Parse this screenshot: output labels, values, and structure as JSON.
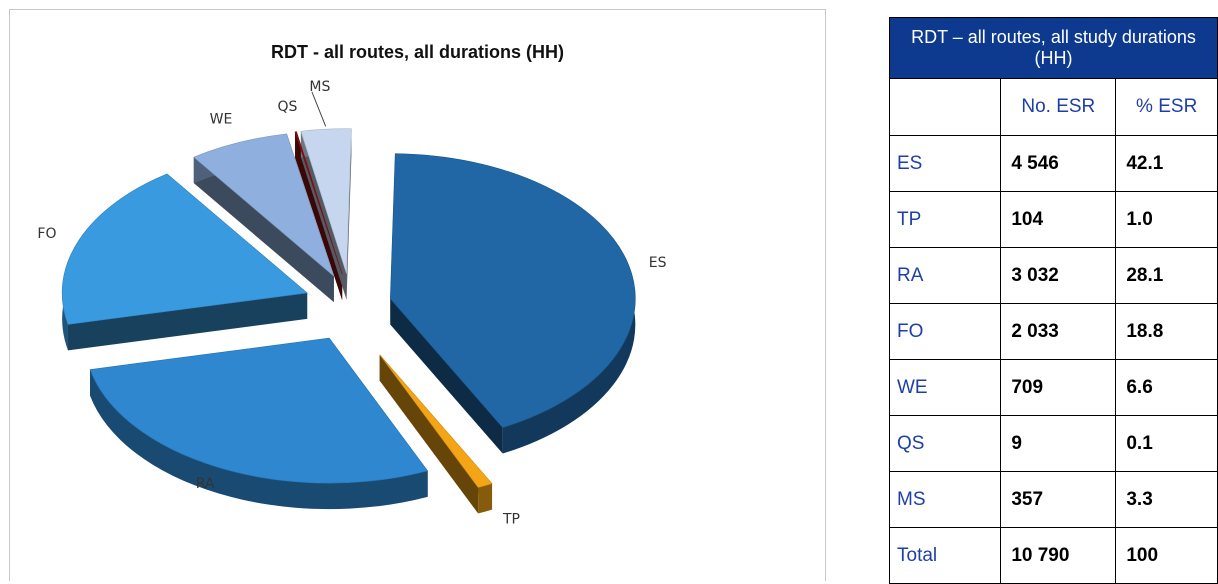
{
  "chart_data": {
    "type": "pie",
    "title": "RDT - all routes, all durations (HH)",
    "slices": [
      {
        "label": "ES",
        "value": 42.1,
        "color": "#2167a5"
      },
      {
        "label": "TP",
        "value": 1.0,
        "color": "#f4a516"
      },
      {
        "label": "RA",
        "value": 28.1,
        "color": "#2e87cf"
      },
      {
        "label": "FO",
        "value": 18.8,
        "color": "#3a9ae0"
      },
      {
        "label": "WE",
        "value": 6.6,
        "color": "#8fb0de"
      },
      {
        "label": "QS",
        "value": 0.1,
        "color": "#8a1111"
      },
      {
        "label": "MS",
        "value": 3.3,
        "color": "#c6d6ee"
      }
    ],
    "exploded": true,
    "style": "3d"
  },
  "table": {
    "title": "RDT – all routes, all study durations (HH)",
    "columns": [
      "",
      "No. ESR",
      "% ESR"
    ],
    "rows": [
      [
        "ES",
        "4 546",
        "42.1"
      ],
      [
        "TP",
        "104",
        "1.0"
      ],
      [
        "RA",
        "3 032",
        "28.1"
      ],
      [
        "FO",
        "2 033",
        "18.8"
      ],
      [
        "WE",
        "709",
        "6.6"
      ],
      [
        "QS",
        "9",
        "0.1"
      ],
      [
        "MS",
        "357",
        "3.3"
      ],
      [
        "Total",
        "10 790",
        "100"
      ]
    ]
  }
}
